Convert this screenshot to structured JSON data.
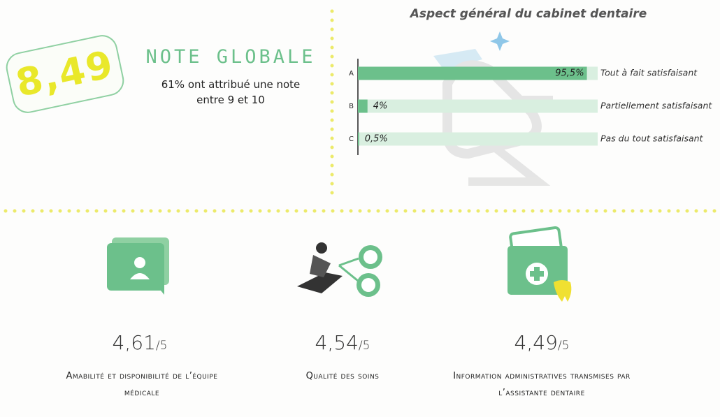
{
  "score": {
    "value": "8,49",
    "label": "NOTE GLOBALE",
    "note": "61% ont attribué une note entre 9 et 10"
  },
  "chart_data": {
    "type": "bar",
    "orientation": "horizontal",
    "title": "Aspect général du cabinet dentaire",
    "categories": [
      "A",
      "B",
      "C"
    ],
    "descriptions": [
      "Tout à fait satisfaisant",
      "Partiellement satisfaisant",
      "Pas du tout satisfaisant"
    ],
    "values": [
      95.5,
      4,
      0.5
    ],
    "value_labels": [
      "95,5%",
      "4%",
      "0,5%"
    ],
    "color": "#6cc08b",
    "track_color": "#d9efe0",
    "xlim": [
      0,
      100
    ]
  },
  "metrics": [
    {
      "score": "4,61",
      "scale": "/5",
      "label": "Amabilité et disponibilité de l’équipe médicale"
    },
    {
      "score": "4,54",
      "scale": "/5",
      "label": "Qualité des soins"
    },
    {
      "score": "4,49",
      "scale": "/5",
      "label": "Information administratives transmises par l’assistante dentaire"
    }
  ]
}
